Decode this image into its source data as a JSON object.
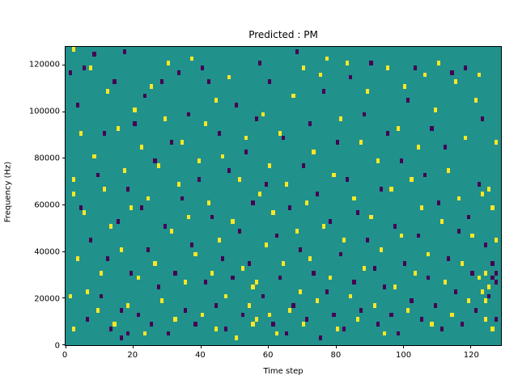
{
  "figure": {
    "title": "Predicted : PM",
    "xlabel": "Time step",
    "ylabel": "Frequency (Hz)"
  },
  "chart_data": {
    "type": "heatmap",
    "title": "Predicted : PM",
    "xlabel": "Time step",
    "ylabel": "Frequency (Hz)",
    "xlim": [
      0,
      129
    ],
    "ylim": [
      0,
      128000
    ],
    "x_ticks": [
      0,
      20,
      40,
      60,
      80,
      100,
      120
    ],
    "y_ticks": [
      0,
      20000,
      40000,
      60000,
      80000,
      100000,
      120000
    ],
    "grid": false,
    "legend": "none",
    "colors": {
      "background": "#21918c",
      "high": "#fde725",
      "low": "#440154"
    },
    "cells": {
      "yellow": [
        [
          2,
          126000
        ],
        [
          2,
          70000
        ],
        [
          2,
          64000
        ],
        [
          3,
          36000
        ],
        [
          1,
          20000
        ],
        [
          2,
          6000
        ],
        [
          4,
          90000
        ],
        [
          5,
          56000
        ],
        [
          6,
          22000
        ],
        [
          7,
          118000
        ],
        [
          8,
          80000
        ],
        [
          9,
          14000
        ],
        [
          10,
          30000
        ],
        [
          11,
          66000
        ],
        [
          12,
          108000
        ],
        [
          13,
          50000
        ],
        [
          14,
          8000
        ],
        [
          15,
          92000
        ],
        [
          16,
          40000
        ],
        [
          17,
          74000
        ],
        [
          18,
          16000
        ],
        [
          19,
          58000
        ],
        [
          20,
          100000
        ],
        [
          21,
          28000
        ],
        [
          22,
          84000
        ],
        [
          23,
          4000
        ],
        [
          24,
          62000
        ],
        [
          25,
          110000
        ],
        [
          26,
          34000
        ],
        [
          27,
          76000
        ],
        [
          28,
          18000
        ],
        [
          29,
          96000
        ],
        [
          30,
          120000
        ],
        [
          31,
          48000
        ],
        [
          32,
          10000
        ],
        [
          33,
          68000
        ],
        [
          34,
          86000
        ],
        [
          35,
          26000
        ],
        [
          36,
          54000
        ],
        [
          37,
          122000
        ],
        [
          38,
          38000
        ],
        [
          39,
          78000
        ],
        [
          40,
          12000
        ],
        [
          41,
          94000
        ],
        [
          42,
          60000
        ],
        [
          43,
          30000
        ],
        [
          44,
          6000
        ],
        [
          44,
          104000
        ],
        [
          45,
          44000
        ],
        [
          46,
          80000
        ],
        [
          47,
          20000
        ],
        [
          48,
          114000
        ],
        [
          49,
          52000
        ],
        [
          50,
          2000
        ],
        [
          51,
          70000
        ],
        [
          52,
          32000
        ],
        [
          53,
          88000
        ],
        [
          54,
          16000
        ],
        [
          55,
          8000
        ],
        [
          55,
          24000
        ],
        [
          56,
          10000
        ],
        [
          56,
          26000
        ],
        [
          57,
          64000
        ],
        [
          58,
          98000
        ],
        [
          59,
          42000
        ],
        [
          60,
          12000
        ],
        [
          60,
          76000
        ],
        [
          61,
          56000
        ],
        [
          62,
          4000
        ],
        [
          63,
          90000
        ],
        [
          64,
          34000
        ],
        [
          65,
          68000
        ],
        [
          66,
          14000
        ],
        [
          67,
          106000
        ],
        [
          68,
          48000
        ],
        [
          69,
          22000
        ],
        [
          70,
          8000
        ],
        [
          70,
          118000
        ],
        [
          71,
          60000
        ],
        [
          72,
          36000
        ],
        [
          73,
          82000
        ],
        [
          74,
          18000
        ],
        [
          75,
          115000
        ],
        [
          76,
          50000
        ],
        [
          77,
          122000
        ],
        [
          78,
          28000
        ],
        [
          79,
          72000
        ],
        [
          80,
          6000
        ],
        [
          81,
          96000
        ],
        [
          82,
          44000
        ],
        [
          83,
          120000
        ],
        [
          84,
          20000
        ],
        [
          85,
          62000
        ],
        [
          86,
          10000
        ],
        [
          87,
          86000
        ],
        [
          88,
          32000
        ],
        [
          89,
          108000
        ],
        [
          90,
          54000
        ],
        [
          91,
          16000
        ],
        [
          92,
          78000
        ],
        [
          93,
          40000
        ],
        [
          94,
          4000
        ],
        [
          95,
          118000
        ],
        [
          96,
          66000
        ],
        [
          97,
          24000
        ],
        [
          98,
          92000
        ],
        [
          99,
          46000
        ],
        [
          100,
          110000
        ],
        [
          101,
          14000
        ],
        [
          102,
          70000
        ],
        [
          103,
          30000
        ],
        [
          104,
          84000
        ],
        [
          105,
          58000
        ],
        [
          106,
          115000
        ],
        [
          107,
          38000
        ],
        [
          108,
          8000
        ],
        [
          109,
          100000
        ],
        [
          110,
          120000
        ],
        [
          111,
          52000
        ],
        [
          112,
          26000
        ],
        [
          113,
          74000
        ],
        [
          114,
          12000
        ],
        [
          115,
          112000
        ],
        [
          116,
          62000
        ],
        [
          117,
          34000
        ],
        [
          118,
          88000
        ],
        [
          119,
          18000
        ],
        [
          120,
          46000
        ],
        [
          121,
          104000
        ],
        [
          122,
          115000
        ],
        [
          122,
          28000
        ],
        [
          123,
          22000
        ],
        [
          123,
          64000
        ],
        [
          124,
          30000
        ],
        [
          124,
          18000
        ],
        [
          124,
          10000
        ],
        [
          125,
          66000
        ],
        [
          125,
          24000
        ],
        [
          126,
          58000
        ],
        [
          126,
          6000
        ],
        [
          127,
          86000
        ],
        [
          127,
          44000
        ]
      ],
      "purple": [
        [
          1,
          116000
        ],
        [
          3,
          102000
        ],
        [
          4,
          58000
        ],
        [
          5,
          118000
        ],
        [
          6,
          10000
        ],
        [
          7,
          44000
        ],
        [
          8,
          124000
        ],
        [
          9,
          72000
        ],
        [
          10,
          20000
        ],
        [
          11,
          90000
        ],
        [
          12,
          36000
        ],
        [
          13,
          6000
        ],
        [
          14,
          112000
        ],
        [
          15,
          52000
        ],
        [
          16,
          2000
        ],
        [
          16,
          14000
        ],
        [
          17,
          125000
        ],
        [
          18,
          66000
        ],
        [
          18,
          4000
        ],
        [
          19,
          30000
        ],
        [
          20,
          94000
        ],
        [
          21,
          12000
        ],
        [
          22,
          58000
        ],
        [
          23,
          106000
        ],
        [
          24,
          40000
        ],
        [
          25,
          8000
        ],
        [
          26,
          78000
        ],
        [
          27,
          24000
        ],
        [
          28,
          112000
        ],
        [
          29,
          50000
        ],
        [
          30,
          4000
        ],
        [
          31,
          86000
        ],
        [
          32,
          30000
        ],
        [
          33,
          116000
        ],
        [
          34,
          62000
        ],
        [
          35,
          14000
        ],
        [
          36,
          98000
        ],
        [
          37,
          42000
        ],
        [
          38,
          8000
        ],
        [
          39,
          70000
        ],
        [
          40,
          118000
        ],
        [
          41,
          26000
        ],
        [
          42,
          112000
        ],
        [
          43,
          54000
        ],
        [
          44,
          16000
        ],
        [
          45,
          90000
        ],
        [
          46,
          36000
        ],
        [
          47,
          6000
        ],
        [
          48,
          74000
        ],
        [
          49,
          28000
        ],
        [
          50,
          102000
        ],
        [
          51,
          48000
        ],
        [
          52,
          12000
        ],
        [
          53,
          82000
        ],
        [
          54,
          34000
        ],
        [
          55,
          60000
        ],
        [
          56,
          96000
        ],
        [
          57,
          120000
        ],
        [
          58,
          20000
        ],
        [
          59,
          68000
        ],
        [
          60,
          112000
        ],
        [
          61,
          8000
        ],
        [
          62,
          46000
        ],
        [
          63,
          28000
        ],
        [
          64,
          88000
        ],
        [
          65,
          4000
        ],
        [
          66,
          58000
        ],
        [
          67,
          16000
        ],
        [
          68,
          125000
        ],
        [
          69,
          40000
        ],
        [
          70,
          76000
        ],
        [
          71,
          10000
        ],
        [
          72,
          94000
        ],
        [
          73,
          30000
        ],
        [
          74,
          64000
        ],
        [
          75,
          2000
        ],
        [
          76,
          108000
        ],
        [
          77,
          22000
        ],
        [
          78,
          52000
        ],
        [
          79,
          12000
        ],
        [
          80,
          86000
        ],
        [
          81,
          38000
        ],
        [
          82,
          6000
        ],
        [
          83,
          70000
        ],
        [
          84,
          114000
        ],
        [
          85,
          26000
        ],
        [
          86,
          56000
        ],
        [
          87,
          14000
        ],
        [
          88,
          98000
        ],
        [
          89,
          44000
        ],
        [
          90,
          120000
        ],
        [
          91,
          32000
        ],
        [
          92,
          8000
        ],
        [
          93,
          66000
        ],
        [
          94,
          24000
        ],
        [
          95,
          90000
        ],
        [
          96,
          12000
        ],
        [
          97,
          50000
        ],
        [
          98,
          4000
        ],
        [
          99,
          78000
        ],
        [
          100,
          34000
        ],
        [
          101,
          104000
        ],
        [
          102,
          18000
        ],
        [
          103,
          118000
        ],
        [
          104,
          46000
        ],
        [
          105,
          10000
        ],
        [
          106,
          72000
        ],
        [
          107,
          28000
        ],
        [
          108,
          92000
        ],
        [
          109,
          16000
        ],
        [
          110,
          60000
        ],
        [
          111,
          6000
        ],
        [
          112,
          84000
        ],
        [
          113,
          36000
        ],
        [
          114,
          116000
        ],
        [
          115,
          22000
        ],
        [
          116,
          48000
        ],
        [
          117,
          8000
        ],
        [
          118,
          118000
        ],
        [
          119,
          54000
        ],
        [
          120,
          30000
        ],
        [
          121,
          14000
        ],
        [
          122,
          68000
        ],
        [
          123,
          96000
        ],
        [
          124,
          42000
        ],
        [
          125,
          20000
        ],
        [
          126,
          34000
        ],
        [
          126,
          28000
        ],
        [
          127,
          30000
        ],
        [
          127,
          26000
        ],
        [
          127,
          10000
        ]
      ]
    }
  }
}
